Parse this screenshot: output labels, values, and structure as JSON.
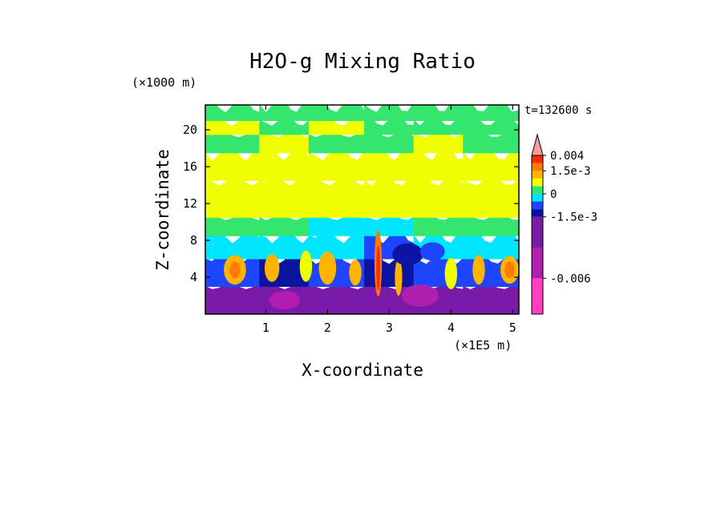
{
  "chart_data": {
    "type": "heatmap",
    "title": "H2O-g Mixing Ratio",
    "xlabel": "X-coordinate",
    "ylabel": "Z-coordinate",
    "x_unit": "(×1E5 m)",
    "y_unit": "(×1000 m)",
    "time_label": "t=132600 s",
    "xlim": [
      0.02,
      5.1
    ],
    "ylim": [
      0,
      22.7
    ],
    "x_ticks": [
      1,
      2,
      3,
      4,
      5
    ],
    "x_tick_labels": [
      "1",
      "2",
      "3",
      "4",
      "5"
    ],
    "y_ticks": [
      4,
      8,
      12,
      16,
      20
    ],
    "y_tick_labels": [
      "4",
      "8",
      "12",
      "16",
      "20"
    ],
    "colorbar": {
      "labels": [
        {
          "text": "0.004",
          "value": 0.004
        },
        {
          "text": "1.5e-3",
          "value": 0.0015
        },
        {
          "text": "0",
          "value": 0
        },
        {
          "text": "-1.5e-3",
          "value": -0.0015
        },
        {
          "text": "-0.006",
          "value": -0.006
        }
      ],
      "levels": [
        {
          "color": "#ff3fc0",
          "low": -0.009,
          "high": -0.006
        },
        {
          "color": "#b01eb0",
          "low": -0.006,
          "high": -0.003
        },
        {
          "color": "#7a1aa8",
          "low": -0.003,
          "high": -0.0015
        },
        {
          "color": "#0a14a0",
          "low": -0.0015,
          "high": -0.001
        },
        {
          "color": "#1e46ff",
          "low": -0.001,
          "high": -0.0005
        },
        {
          "color": "#00e6ff",
          "low": -0.0005,
          "high": 0
        },
        {
          "color": "#34e66e",
          "low": 0,
          "high": 0.0005
        },
        {
          "color": "#f0ff00",
          "low": 0.0005,
          "high": 0.001
        },
        {
          "color": "#ffb400",
          "low": 0.001,
          "high": 0.0015
        },
        {
          "color": "#ff7a00",
          "low": 0.0015,
          "high": 0.002
        },
        {
          "color": "#ff2a00",
          "low": 0.002,
          "high": 0.004
        },
        {
          "color": "#ff9a9a",
          "low": 0.004,
          "high": 0.006
        }
      ]
    },
    "field": {
      "x_bands": [
        {
          "from": 0.0,
          "to": 0.9,
          "colors": [
            "#7a1aa8",
            "#1e46ff",
            "#00e6ff",
            "#34e66e",
            "#f0ff00",
            "#f0ff00",
            "#34e66e",
            "#f0ff00",
            "#34e66e"
          ]
        },
        {
          "from": 0.9,
          "to": 1.7,
          "colors": [
            "#7a1aa8",
            "#0a14a0",
            "#00e6ff",
            "#34e66e",
            "#f0ff00",
            "#f0ff00",
            "#f0ff00",
            "#34e66e",
            "#34e66e"
          ]
        },
        {
          "from": 1.7,
          "to": 2.6,
          "colors": [
            "#7a1aa8",
            "#1e46ff",
            "#00e6ff",
            "#00e6ff",
            "#f0ff00",
            "#f0ff00",
            "#34e66e",
            "#f0ff00",
            "#34e66e"
          ]
        },
        {
          "from": 2.6,
          "to": 3.4,
          "colors": [
            "#7a1aa8",
            "#0a14a0",
            "#1e46ff",
            "#00e6ff",
            "#f0ff00",
            "#f0ff00",
            "#34e66e",
            "#34e66e",
            "#34e66e"
          ]
        },
        {
          "from": 3.4,
          "to": 4.2,
          "colors": [
            "#7a1aa8",
            "#1e46ff",
            "#00e6ff",
            "#34e66e",
            "#f0ff00",
            "#f0ff00",
            "#f0ff00",
            "#34e66e",
            "#34e66e"
          ]
        },
        {
          "from": 4.2,
          "to": 5.1,
          "colors": [
            "#7a1aa8",
            "#1e46ff",
            "#00e6ff",
            "#34e66e",
            "#f0ff00",
            "#f0ff00",
            "#34e66e",
            "#34e66e",
            "#34e66e"
          ]
        }
      ],
      "z_levels": [
        0,
        3,
        6,
        8.5,
        10.5,
        14.5,
        17.5,
        19.5,
        21
      ],
      "z_top": 22.7,
      "cores": [
        {
          "x": 0.5,
          "z": 4.8,
          "rx": 0.18,
          "rz": 1.6,
          "color": "#ffb400"
        },
        {
          "x": 0.5,
          "z": 4.8,
          "rx": 0.09,
          "rz": 0.9,
          "color": "#ff7a00"
        },
        {
          "x": 1.1,
          "z": 5.0,
          "rx": 0.12,
          "rz": 1.5,
          "color": "#ffb400"
        },
        {
          "x": 1.65,
          "z": 5.2,
          "rx": 0.1,
          "rz": 1.7,
          "color": "#f0ff00"
        },
        {
          "x": 2.0,
          "z": 5.0,
          "rx": 0.14,
          "rz": 1.8,
          "color": "#ffb400"
        },
        {
          "x": 2.45,
          "z": 4.5,
          "rx": 0.1,
          "rz": 1.4,
          "color": "#ffb400"
        },
        {
          "x": 2.82,
          "z": 5.5,
          "rx": 0.06,
          "rz": 3.6,
          "color": "#ff7a00"
        },
        {
          "x": 2.82,
          "z": 5.0,
          "rx": 0.03,
          "rz": 2.4,
          "color": "#ff2a00"
        },
        {
          "x": 3.15,
          "z": 4.0,
          "rx": 0.06,
          "rz": 2.0,
          "color": "#ffb400"
        },
        {
          "x": 4.0,
          "z": 4.4,
          "rx": 0.1,
          "rz": 1.7,
          "color": "#f0ff00"
        },
        {
          "x": 4.45,
          "z": 4.8,
          "rx": 0.1,
          "rz": 1.6,
          "color": "#ffb400"
        },
        {
          "x": 4.95,
          "z": 4.8,
          "rx": 0.15,
          "rz": 1.5,
          "color": "#ffb400"
        },
        {
          "x": 4.95,
          "z": 4.8,
          "rx": 0.08,
          "rz": 0.9,
          "color": "#ff7a00"
        },
        {
          "x": 3.5,
          "z": 2.0,
          "rx": 0.3,
          "rz": 1.2,
          "color": "#b01eb0"
        },
        {
          "x": 1.3,
          "z": 1.5,
          "rx": 0.25,
          "rz": 1.0,
          "color": "#b01eb0"
        },
        {
          "x": 3.3,
          "z": 6.5,
          "rx": 0.25,
          "rz": 1.2,
          "color": "#0a14a0"
        },
        {
          "x": 3.7,
          "z": 6.8,
          "rx": 0.2,
          "rz": 1.0,
          "color": "#1e46ff"
        }
      ]
    }
  }
}
